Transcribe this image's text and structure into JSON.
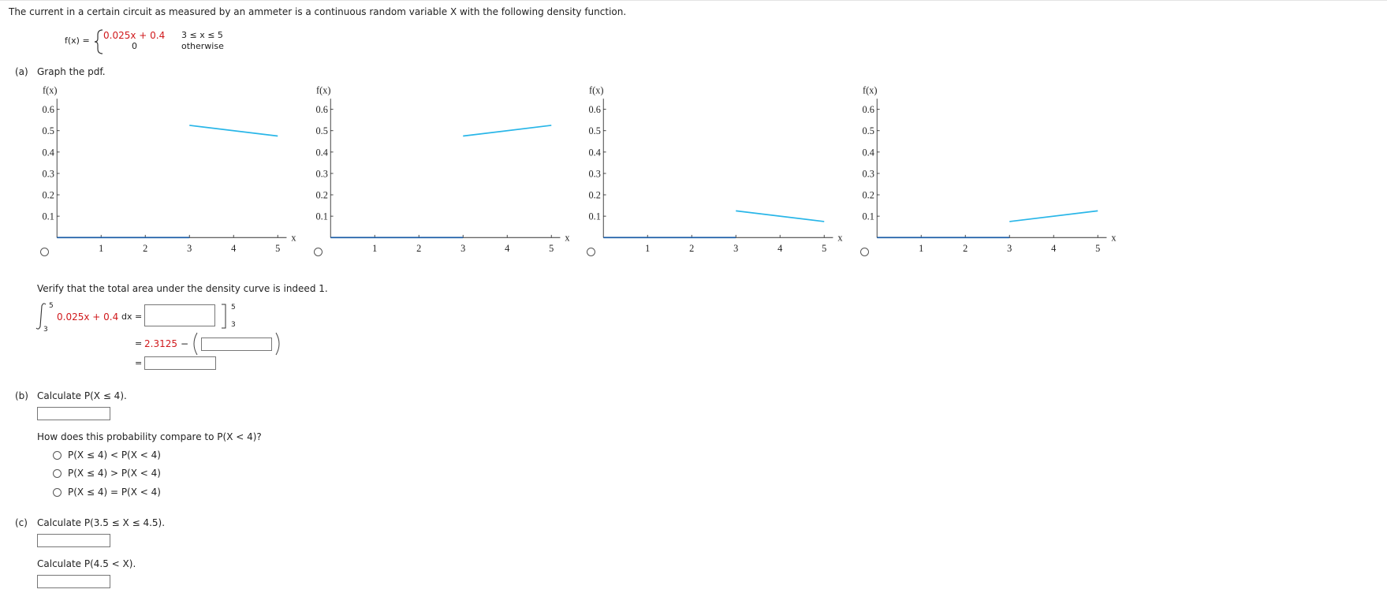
{
  "intro": "The current in a certain circuit as measured by an ammeter is a continuous random variable X with the following density function.",
  "density": {
    "lhs": "f(x) =",
    "expr": "0.025x + 0.4",
    "cond": "3 ≤ x ≤ 5",
    "other_value": "0",
    "other_cond": "otherwise"
  },
  "part_a": {
    "label": "(a)",
    "prompt": "Graph the pdf.",
    "verify": "Verify that the total area under the density curve is indeed 1.",
    "integral": {
      "upper": "5",
      "lower": "3",
      "integrand": "0.025x + 0.4",
      "dx": "dx =",
      "eval_upper": "5",
      "eval_lower": "3"
    },
    "step2": {
      "eq": "=",
      "value": "2.3125",
      "minus": "−"
    },
    "step3": {
      "eq": "="
    }
  },
  "part_b": {
    "label": "(b)",
    "prompt": "Calculate P(X ≤ 4).",
    "question": "How does this probability compare to P(X < 4)?",
    "options": [
      "P(X ≤ 4) < P(X < 4)",
      "P(X ≤ 4) > P(X < 4)",
      "P(X ≤ 4) = P(X < 4)"
    ]
  },
  "part_c": {
    "label": "(c)",
    "prompt": "Calculate P(3.5 ≤ X ≤ 4.5).",
    "prompt2": "Calculate P(4.5 < X)."
  },
  "chart_data": [
    {
      "type": "line",
      "x_label": "x",
      "y_label": "f(x)",
      "xlim": [
        0,
        5.2
      ],
      "ylim": [
        0,
        0.65
      ],
      "xticks": [
        1,
        2,
        3,
        4,
        5
      ],
      "yticks": [
        0.1,
        0.2,
        0.3,
        0.4,
        0.5,
        0.6
      ],
      "series": [
        {
          "color": "#1f5fa8",
          "x": [
            0,
            3
          ],
          "values": [
            0,
            0
          ]
        },
        {
          "color": "#29b6e8",
          "x": [
            3,
            5
          ],
          "values": [
            0.525,
            0.475
          ]
        }
      ]
    },
    {
      "type": "line",
      "x_label": "x",
      "y_label": "f(x)",
      "xlim": [
        0,
        5.2
      ],
      "ylim": [
        0,
        0.65
      ],
      "xticks": [
        1,
        2,
        3,
        4,
        5
      ],
      "yticks": [
        0.1,
        0.2,
        0.3,
        0.4,
        0.5,
        0.6
      ],
      "series": [
        {
          "color": "#1f5fa8",
          "x": [
            0,
            3
          ],
          "values": [
            0,
            0
          ]
        },
        {
          "color": "#29b6e8",
          "x": [
            3,
            5
          ],
          "values": [
            0.475,
            0.525
          ]
        }
      ]
    },
    {
      "type": "line",
      "x_label": "x",
      "y_label": "f(x)",
      "xlim": [
        0,
        5.2
      ],
      "ylim": [
        0,
        0.65
      ],
      "xticks": [
        1,
        2,
        3,
        4,
        5
      ],
      "yticks": [
        0.1,
        0.2,
        0.3,
        0.4,
        0.5,
        0.6
      ],
      "series": [
        {
          "color": "#1f5fa8",
          "x": [
            0,
            3
          ],
          "values": [
            0,
            0
          ]
        },
        {
          "color": "#29b6e8",
          "x": [
            3,
            5
          ],
          "values": [
            0.125,
            0.075
          ]
        }
      ]
    },
    {
      "type": "line",
      "x_label": "x",
      "y_label": "f(x)",
      "xlim": [
        0,
        5.2
      ],
      "ylim": [
        0,
        0.65
      ],
      "xticks": [
        1,
        2,
        3,
        4,
        5
      ],
      "yticks": [
        0.1,
        0.2,
        0.3,
        0.4,
        0.5,
        0.6
      ],
      "series": [
        {
          "color": "#1f5fa8",
          "x": [
            0,
            3
          ],
          "values": [
            0,
            0
          ]
        },
        {
          "color": "#29b6e8",
          "x": [
            3,
            5
          ],
          "values": [
            0.075,
            0.125
          ]
        }
      ]
    }
  ]
}
